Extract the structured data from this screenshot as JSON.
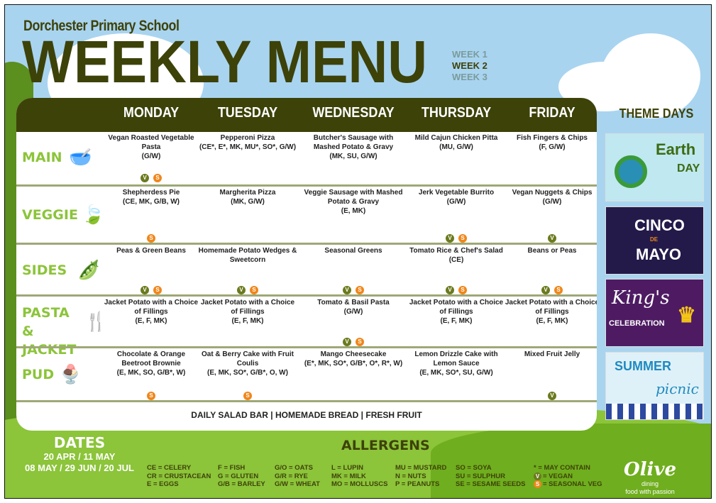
{
  "header": {
    "school": "Dorchester Primary School",
    "title": "WEEKLY MENU",
    "weeks": [
      "WEEK 1",
      "WEEK 2",
      "WEEK 3"
    ],
    "current_week": "WEEK 2"
  },
  "days": [
    "MONDAY",
    "TUESDAY",
    "WEDNESDAY",
    "THURSDAY",
    "FRIDAY"
  ],
  "rows": [
    {
      "label": "MAIN",
      "icon": "bowl-icon",
      "items": [
        {
          "name": "Vegan Roasted Vegetable Pasta",
          "allergens": "(G/W)",
          "badges": [
            "V",
            "S"
          ]
        },
        {
          "name": "Pepperoni Pizza",
          "allergens": "(CE*, E*, MK, MU*, SO*, G/W)",
          "badges": []
        },
        {
          "name": "Butcher's Sausage with Mashed Potato & Gravy",
          "allergens": "(MK, SU, G/W)",
          "badges": []
        },
        {
          "name": "Mild Cajun Chicken Pitta",
          "allergens": "(MU, G/W)",
          "badges": []
        },
        {
          "name": "Fish Fingers & Chips",
          "allergens": "(F, G/W)",
          "badges": []
        }
      ]
    },
    {
      "label": "VEGGIE",
      "icon": "leaf-icon",
      "items": [
        {
          "name": "Shepherdess Pie",
          "allergens": "(CE, MK, G/B, W)",
          "badges": [
            "S"
          ]
        },
        {
          "name": "Margherita Pizza",
          "allergens": "(MK, G/W)",
          "badges": []
        },
        {
          "name": "Veggie Sausage with Mashed Potato & Gravy",
          "allergens": "(E, MK)",
          "badges": []
        },
        {
          "name": "Jerk Vegetable Burrito",
          "allergens": "(G/W)",
          "badges": [
            "V",
            "S"
          ]
        },
        {
          "name": "Vegan Nuggets & Chips",
          "allergens": "(G/W)",
          "badges": [
            "V"
          ]
        }
      ]
    },
    {
      "label": "SIDES",
      "icon": "peapod-icon",
      "items": [
        {
          "name": "Peas & Green Beans",
          "allergens": "",
          "badges": [
            "V",
            "S"
          ]
        },
        {
          "name": "Homemade Potato Wedges & Sweetcorn",
          "allergens": "",
          "badges": [
            "V",
            "S"
          ]
        },
        {
          "name": "Seasonal Greens",
          "allergens": "",
          "badges": [
            "V",
            "S"
          ]
        },
        {
          "name": "Tomato Rice & Chef's Salad",
          "allergens": "(CE)",
          "badges": [
            "V",
            "S"
          ]
        },
        {
          "name": "Beans or Peas",
          "allergens": "",
          "badges": [
            "V",
            "S"
          ]
        }
      ]
    },
    {
      "label": "PASTA & JACKET",
      "icon": "fork-icon",
      "items": [
        {
          "name": "Jacket Potato with a Choice of Fillings",
          "allergens": "(E, F, MK)",
          "badges": []
        },
        {
          "name": "Jacket Potato with a Choice of Fillings",
          "allergens": "(E, F, MK)",
          "badges": []
        },
        {
          "name": "Tomato & Basil Pasta",
          "allergens": "(G/W)",
          "badges": [
            "V",
            "S"
          ]
        },
        {
          "name": "Jacket Potato with a Choice of Fillings",
          "allergens": "(E, F, MK)",
          "badges": []
        },
        {
          "name": "Jacket Potato with a Choice of Fillings",
          "allergens": "(E, F, MK)",
          "badges": []
        }
      ]
    },
    {
      "label": "PUD",
      "icon": "sundae-icon",
      "items": [
        {
          "name": "Chocolate & Orange Beetroot Brownie",
          "allergens": "(E, MK, SO, G/B*, W)",
          "badges": [
            "S"
          ]
        },
        {
          "name": "Oat & Berry Cake with Fruit Coulis",
          "allergens": "(E, MK, SO*, G/B*, O, W)",
          "badges": [
            "S"
          ]
        },
        {
          "name": "Mango Cheesecake",
          "allergens": "(E*, MK, SO*, G/B*, O*, R*, W)",
          "badges": []
        },
        {
          "name": "Lemon Drizzle Cake with Lemon Sauce",
          "allergens": "(E, MK, SO*, SU, G/W)",
          "badges": []
        },
        {
          "name": "Mixed Fruit Jelly",
          "allergens": "",
          "badges": [
            "V"
          ]
        }
      ]
    }
  ],
  "daily": "DAILY SALAD BAR | HOMEMADE BREAD | FRESH FRUIT",
  "theme_days": {
    "title": "THEME DAYS",
    "posters": [
      {
        "name": "earth-day",
        "lines": [
          "Earth",
          "DAY"
        ]
      },
      {
        "name": "cinco-de-mayo",
        "lines": [
          "CINCO",
          "DE",
          "MAYO"
        ]
      },
      {
        "name": "kings-celebration",
        "lines": [
          "King's",
          "CELEBRATION"
        ]
      },
      {
        "name": "summer-picnic",
        "lines": [
          "SUMMER",
          "picnic"
        ]
      }
    ]
  },
  "dates": {
    "title": "DATES",
    "lines": [
      "20 APR / 11 MAY",
      "08 MAY / 29 JUN / 20 JUL"
    ]
  },
  "allergens": {
    "title": "ALLERGENS",
    "columns": [
      [
        "CE = CELERY",
        "CR = CRUSTACEAN",
        "E = EGGS"
      ],
      [
        "F = FISH",
        "G = GLUTEN",
        "G/B = BARLEY"
      ],
      [
        "G/O = OATS",
        "G/R = RYE",
        "G/W = WHEAT"
      ],
      [
        "L = LUPIN",
        "MK = MILK",
        "MO = MOLLUSCS"
      ],
      [
        "MU = MUSTARD",
        "N = NUTS",
        "P = PEANUTS"
      ],
      [
        "SO = SOYA",
        "SU = SULPHUR",
        "SE = SESAME SEEDS"
      ],
      [
        "* = MAY CONTAIN",
        "= VEGAN",
        "= SEASONAL VEG"
      ]
    ]
  },
  "badge_labels": {
    "V": "V",
    "S": "S"
  },
  "logo": {
    "name": "Olive",
    "sub": "dining",
    "tagline": "food with passion"
  },
  "colors": {
    "olive_dark": "#3d4209",
    "lime": "#8cc43a",
    "vegan": "#6b7a1e",
    "seasonal": "#f0861a",
    "sky": "#a9d4f0"
  }
}
